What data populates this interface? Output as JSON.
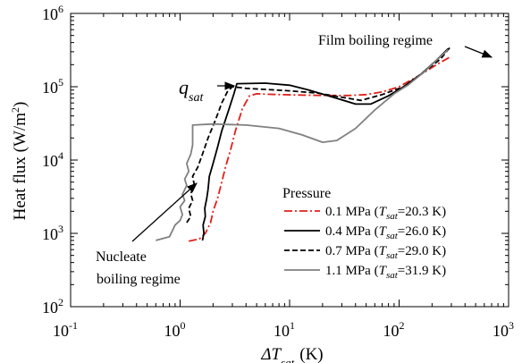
{
  "chart_data": {
    "type": "line",
    "title": "",
    "xlabel": {
      "prefix": "ΔT",
      "sub": "sat",
      "suffix": "(K)"
    },
    "ylabel": {
      "prefix": "Heat flux (W/m",
      "sup": "2",
      "suffix": ")"
    },
    "xscale": "log",
    "yscale": "log",
    "xlim": [
      0.1,
      1000
    ],
    "ylim": [
      100,
      1000000
    ],
    "x_ticks": [
      {
        "value": 0.1,
        "base": "10",
        "exp": "-1"
      },
      {
        "value": 1,
        "base": "10",
        "exp": "0"
      },
      {
        "value": 10,
        "base": "10",
        "exp": "1"
      },
      {
        "value": 100,
        "base": "10",
        "exp": "2"
      },
      {
        "value": 1000,
        "base": "10",
        "exp": "3"
      }
    ],
    "y_ticks": [
      {
        "value": 100,
        "base": "10",
        "exp": "2"
      },
      {
        "value": 1000,
        "base": "10",
        "exp": "3"
      },
      {
        "value": 10000,
        "base": "10",
        "exp": "4"
      },
      {
        "value": 100000,
        "base": "10",
        "exp": "5"
      },
      {
        "value": 1000000,
        "base": "10",
        "exp": "6"
      }
    ],
    "grid": false,
    "legend": {
      "title": "Pressure",
      "position": "bottom-right",
      "entries": [
        {
          "label": "0.1 MPa",
          "tlabel": "T",
          "tsub": "sat",
          "tval": "=20.3 K"
        },
        {
          "label": "0.4 MPa",
          "tlabel": "T",
          "tsub": "sat",
          "tval": "=26.0 K"
        },
        {
          "label": "0.7 MPa",
          "tlabel": "T",
          "tsub": "sat",
          "tval": "=29.0 K"
        },
        {
          "label": "1.1 MPa",
          "tlabel": "T",
          "tsub": "sat",
          "tval": "=31.9 K"
        }
      ]
    },
    "series": [
      {
        "name": "0.1 MPa",
        "color": "#e0201b",
        "dash": "dashdot",
        "points": [
          [
            1.2,
            780
          ],
          [
            1.5,
            840
          ],
          [
            1.7,
            1000
          ],
          [
            1.9,
            1400
          ],
          [
            2.0,
            2000
          ],
          [
            2.2,
            3000
          ],
          [
            2.4,
            5000
          ],
          [
            2.6,
            8000
          ],
          [
            2.9,
            14000
          ],
          [
            3.2,
            25000
          ],
          [
            3.7,
            50000
          ],
          [
            4.3,
            75000
          ],
          [
            5,
            80000
          ],
          [
            8,
            78000
          ],
          [
            20,
            76000
          ],
          [
            35,
            76000
          ],
          [
            50,
            78000
          ],
          [
            70,
            85000
          ],
          [
            100,
            100000
          ],
          [
            150,
            140000
          ],
          [
            220,
            200000
          ],
          [
            300,
            260000
          ]
        ]
      },
      {
        "name": "0.4 MPa",
        "color": "#000000",
        "dash": "solid",
        "points": [
          [
            1.6,
            800
          ],
          [
            1.65,
            1000
          ],
          [
            1.62,
            1300
          ],
          [
            1.7,
            1700
          ],
          [
            1.68,
            2200
          ],
          [
            1.75,
            3000
          ],
          [
            1.8,
            4000
          ],
          [
            1.85,
            6000
          ],
          [
            2.0,
            9000
          ],
          [
            2.2,
            15000
          ],
          [
            2.4,
            25000
          ],
          [
            2.8,
            50000
          ],
          [
            3.1,
            80000
          ],
          [
            3.3,
            110000
          ],
          [
            6,
            112000
          ],
          [
            10,
            105000
          ],
          [
            15,
            90000
          ],
          [
            25,
            72000
          ],
          [
            40,
            58000
          ],
          [
            55,
            58000
          ],
          [
            80,
            75000
          ],
          [
            110,
            100000
          ],
          [
            160,
            150000
          ],
          [
            220,
            230000
          ],
          [
            280,
            330000
          ]
        ]
      },
      {
        "name": "0.7 MPa",
        "color": "#000000",
        "dash": "dashed",
        "points": [
          [
            1.15,
            1400
          ],
          [
            1.25,
            1700
          ],
          [
            1.2,
            2200
          ],
          [
            1.3,
            2800
          ],
          [
            1.25,
            3500
          ],
          [
            1.35,
            4500
          ],
          [
            1.3,
            6000
          ],
          [
            1.45,
            8000
          ],
          [
            1.6,
            12000
          ],
          [
            1.8,
            20000
          ],
          [
            2.1,
            35000
          ],
          [
            2.4,
            60000
          ],
          [
            2.7,
            85000
          ],
          [
            3.0,
            100000
          ],
          [
            4,
            95000
          ],
          [
            6,
            92000
          ],
          [
            10,
            88000
          ],
          [
            18,
            82000
          ],
          [
            30,
            72000
          ],
          [
            45,
            65000
          ],
          [
            70,
            78000
          ],
          [
            110,
            100000
          ],
          [
            170,
            160000
          ],
          [
            240,
            240000
          ],
          [
            290,
            340000
          ]
        ]
      },
      {
        "name": "1.1 MPa",
        "color": "#808080",
        "dash": "solid",
        "points": [
          [
            0.6,
            800
          ],
          [
            0.8,
            900
          ],
          [
            0.9,
            1300
          ],
          [
            1.0,
            1500
          ],
          [
            1.05,
            1800
          ],
          [
            1.0,
            2300
          ],
          [
            1.1,
            2800
          ],
          [
            1.05,
            3400
          ],
          [
            1.15,
            4500
          ],
          [
            1.1,
            5500
          ],
          [
            1.2,
            7000
          ],
          [
            1.15,
            9000
          ],
          [
            1.25,
            12000
          ],
          [
            1.3,
            16000
          ],
          [
            1.3,
            22000
          ],
          [
            1.3,
            30000
          ],
          [
            2,
            31000
          ],
          [
            4,
            30000
          ],
          [
            8,
            27000
          ],
          [
            13,
            22000
          ],
          [
            20,
            17500
          ],
          [
            27,
            18500
          ],
          [
            40,
            27000
          ],
          [
            60,
            48000
          ],
          [
            90,
            80000
          ],
          [
            120,
            105000
          ],
          [
            170,
            160000
          ],
          [
            240,
            260000
          ],
          [
            280,
            320000
          ]
        ]
      }
    ],
    "annotations": [
      {
        "id": "qsat",
        "label": "q",
        "label_sub": "sat",
        "at": [
          3.1,
          110000
        ]
      },
      {
        "id": "film",
        "label": "Film boiling regime",
        "at": [
          200,
          230000
        ]
      },
      {
        "id": "nucleate",
        "line1": "Nucleate",
        "line2": "boiling regime",
        "at": [
          1.35,
          7500
        ]
      }
    ]
  }
}
